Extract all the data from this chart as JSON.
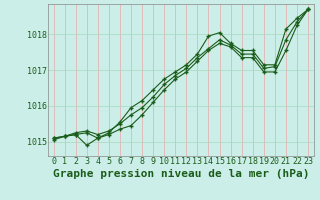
{
  "title": "Graphe pression niveau de la mer (hPa)",
  "xlim": [
    -0.5,
    23.5
  ],
  "ylim": [
    1014.6,
    1018.85
  ],
  "yticks": [
    1015,
    1016,
    1017,
    1018
  ],
  "xticks": [
    0,
    1,
    2,
    3,
    4,
    5,
    6,
    7,
    8,
    9,
    10,
    11,
    12,
    13,
    14,
    15,
    16,
    17,
    18,
    19,
    20,
    21,
    22,
    23
  ],
  "bg_color": "#cceee8",
  "line_color": "#1a5c1a",
  "grid_color_v": "#e8a8a8",
  "grid_color_h": "#a8d8c0",
  "series": [
    [
      1015.1,
      1015.15,
      1015.2,
      1015.25,
      1015.1,
      1015.25,
      1015.55,
      1015.95,
      1016.15,
      1016.45,
      1016.75,
      1016.95,
      1017.15,
      1017.45,
      1017.95,
      1018.05,
      1017.75,
      1017.55,
      1017.55,
      1017.15,
      1017.15,
      1018.15,
      1018.45,
      1018.7
    ],
    [
      1015.05,
      1015.15,
      1015.2,
      1014.9,
      1015.1,
      1015.2,
      1015.35,
      1015.45,
      1015.75,
      1016.1,
      1016.45,
      1016.75,
      1016.95,
      1017.25,
      1017.55,
      1017.75,
      1017.65,
      1017.35,
      1017.35,
      1016.95,
      1016.95,
      1017.55,
      1018.25,
      1018.7
    ],
    [
      1015.1,
      1015.15,
      1015.25,
      1015.3,
      1015.2,
      1015.3,
      1015.5,
      1015.75,
      1015.95,
      1016.25,
      1016.6,
      1016.85,
      1017.05,
      1017.35,
      1017.6,
      1017.85,
      1017.7,
      1017.45,
      1017.45,
      1017.05,
      1017.1,
      1017.85,
      1018.35,
      1018.7
    ]
  ],
  "title_fontsize": 8,
  "tick_fontsize": 6,
  "figsize": [
    3.2,
    2.0
  ],
  "dpi": 100
}
